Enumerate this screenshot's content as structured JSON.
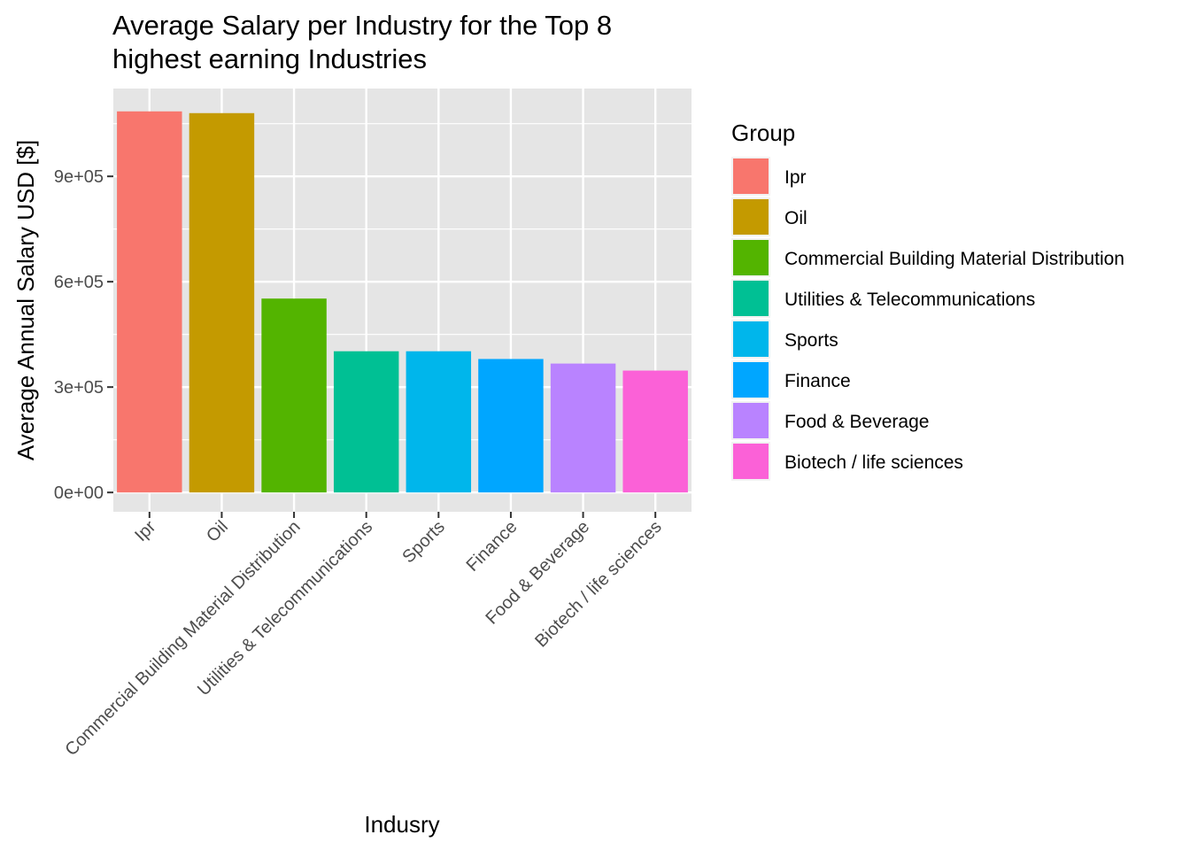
{
  "chart_data": {
    "type": "bar",
    "title_lines": [
      "Average Salary per Industry for the Top 8",
      "highest earning Industries"
    ],
    "xlabel": "Indusry",
    "ylabel": "Average Annual Salary USD [$]",
    "categories": [
      "Ipr",
      "Oil",
      "Commercial Building Material Distribution",
      "Utilities & Telecommunications",
      "Sports",
      "Finance",
      "Food & Beverage",
      "Biotech / life sciences"
    ],
    "values": [
      1085000,
      1080000,
      552000,
      402000,
      402000,
      380000,
      367000,
      347000
    ],
    "colors": [
      "#F8766D",
      "#C49A00",
      "#53B400",
      "#00C094",
      "#00B6EB",
      "#00A6FF",
      "#B983FF",
      "#FB61D7"
    ],
    "yticks": [
      0,
      300000,
      600000,
      900000
    ],
    "ytick_labels": [
      "0e+00",
      "3e+05",
      "6e+05",
      "9e+05"
    ],
    "ylim": [
      -55000,
      1150000
    ],
    "legend": {
      "title": "Group",
      "position": "right",
      "entries": [
        "Ipr",
        "Oil",
        "Commercial Building Material Distribution",
        "Utilities & Telecommunications",
        "Sports",
        "Finance",
        "Food & Beverage",
        "Biotech / life sciences"
      ]
    },
    "grid": true,
    "panel_background": "#E5E5E5"
  }
}
